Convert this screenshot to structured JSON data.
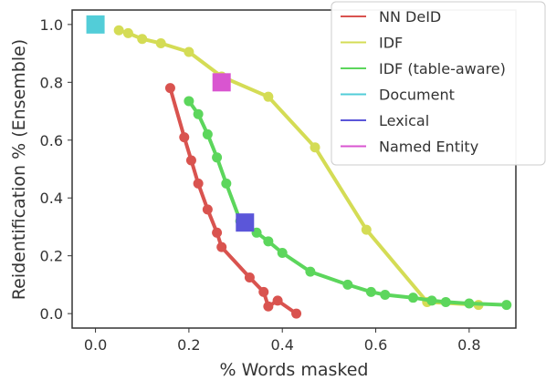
{
  "chart_data": {
    "type": "line",
    "xlabel": "% Words masked",
    "ylabel": "Reidentification % (Ensemble)",
    "xlim": [
      -0.05,
      0.9
    ],
    "ylim": [
      -0.05,
      1.05
    ],
    "xticks": [
      "0.0",
      "0.2",
      "0.4",
      "0.6",
      "0.8"
    ],
    "yticks": [
      "0.0",
      "0.2",
      "0.4",
      "0.6",
      "0.8",
      "1.0"
    ],
    "grid": false,
    "legend_position": "top-right",
    "series": [
      {
        "name": "NN DeID",
        "color": "#d9534f",
        "marker": "circle",
        "points": [
          [
            0.16,
            0.78
          ],
          [
            0.19,
            0.61
          ],
          [
            0.205,
            0.53
          ],
          [
            0.22,
            0.45
          ],
          [
            0.24,
            0.36
          ],
          [
            0.26,
            0.28
          ],
          [
            0.27,
            0.23
          ],
          [
            0.33,
            0.125
          ],
          [
            0.36,
            0.075
          ],
          [
            0.37,
            0.025
          ],
          [
            0.39,
            0.045
          ],
          [
            0.43,
            0.0
          ]
        ]
      },
      {
        "name": "IDF",
        "color": "#d4dc55",
        "marker": "circle",
        "points": [
          [
            0.05,
            0.98
          ],
          [
            0.07,
            0.97
          ],
          [
            0.1,
            0.95
          ],
          [
            0.14,
            0.935
          ],
          [
            0.2,
            0.905
          ],
          [
            0.27,
            0.82
          ],
          [
            0.37,
            0.75
          ],
          [
            0.47,
            0.575
          ],
          [
            0.58,
            0.29
          ],
          [
            0.71,
            0.04
          ],
          [
            0.82,
            0.03
          ]
        ]
      },
      {
        "name": "IDF (table-aware)",
        "color": "#5cd65c",
        "marker": "circle",
        "points": [
          [
            0.2,
            0.735
          ],
          [
            0.22,
            0.69
          ],
          [
            0.24,
            0.62
          ],
          [
            0.26,
            0.54
          ],
          [
            0.28,
            0.45
          ],
          [
            0.31,
            0.32
          ],
          [
            0.345,
            0.28
          ],
          [
            0.37,
            0.25
          ],
          [
            0.4,
            0.21
          ],
          [
            0.46,
            0.145
          ],
          [
            0.54,
            0.1
          ],
          [
            0.59,
            0.075
          ],
          [
            0.62,
            0.065
          ],
          [
            0.68,
            0.055
          ],
          [
            0.72,
            0.045
          ],
          [
            0.75,
            0.04
          ],
          [
            0.8,
            0.035
          ],
          [
            0.88,
            0.03
          ]
        ]
      },
      {
        "name": "Document",
        "color": "#52cdd8",
        "marker": "square",
        "points": [
          [
            0.0,
            1.0
          ]
        ]
      },
      {
        "name": "Lexical",
        "color": "#5b56d9",
        "marker": "square",
        "points": [
          [
            0.32,
            0.315
          ]
        ]
      },
      {
        "name": "Named Entity",
        "color": "#d955d0",
        "marker": "square",
        "points": [
          [
            0.27,
            0.8
          ]
        ]
      }
    ]
  }
}
